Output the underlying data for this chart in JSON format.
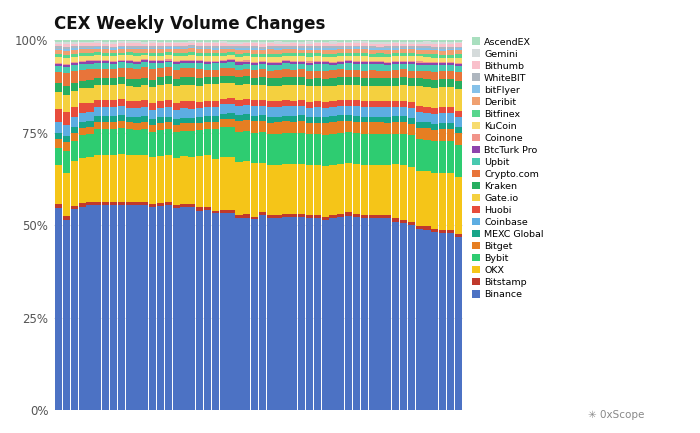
{
  "title": "CEX Weekly Volume Changes",
  "exchanges": [
    "Binance",
    "Bitstamp",
    "OKX",
    "Bybit",
    "Bitget",
    "MEXC Global",
    "Coinbase",
    "Huobi",
    "Gate.io",
    "Kraken",
    "Crypto.com",
    "Upbit",
    "BtcTurk Pro",
    "Coinone",
    "KuCoin",
    "Bitfinex",
    "Deribit",
    "bitFlyer",
    "WhiteBIT",
    "Bithumb",
    "Gemini",
    "AscendEX"
  ],
  "colors": [
    "#4C72C4",
    "#C0392B",
    "#F5C518",
    "#2ECC71",
    "#E67E22",
    "#17A589",
    "#5DADE2",
    "#E74C3C",
    "#F4D03F",
    "#27AE60",
    "#E8743A",
    "#48C9B0",
    "#8E44AD",
    "#F1948A",
    "#F7DC6F",
    "#58D68D",
    "#F0A070",
    "#85C1E9",
    "#AEB6BF",
    "#F9C0CB",
    "#D5DBDB",
    "#A9DFBF"
  ],
  "n_weeks": 52,
  "background_color": "#FFFFFF",
  "grid_color": "#E8E8E8",
  "binance_data": [
    0.47,
    0.44,
    0.5,
    0.54,
    0.55,
    0.56,
    0.56,
    0.56,
    0.56,
    0.57,
    0.57,
    0.56,
    0.56,
    0.56,
    0.56,
    0.55,
    0.55,
    0.55,
    0.54,
    0.54,
    0.53,
    0.52,
    0.52,
    0.51,
    0.51,
    0.5,
    0.51,
    0.5,
    0.5,
    0.5,
    0.5,
    0.5,
    0.5,
    0.5,
    0.49,
    0.5,
    0.5,
    0.51,
    0.5,
    0.5,
    0.5,
    0.5,
    0.5,
    0.49,
    0.48,
    0.47,
    0.46,
    0.46,
    0.45,
    0.44,
    0.44,
    0.43
  ],
  "okx_data": [
    0.09,
    0.1,
    0.11,
    0.12,
    0.12,
    0.13,
    0.13,
    0.13,
    0.13,
    0.13,
    0.13,
    0.13,
    0.13,
    0.13,
    0.13,
    0.13,
    0.13,
    0.13,
    0.14,
    0.14,
    0.14,
    0.14,
    0.14,
    0.14,
    0.14,
    0.14,
    0.13,
    0.13,
    0.13,
    0.13,
    0.13,
    0.13,
    0.13,
    0.13,
    0.13,
    0.13,
    0.13,
    0.13,
    0.13,
    0.13,
    0.13,
    0.13,
    0.13,
    0.14,
    0.14,
    0.14,
    0.14,
    0.14,
    0.14,
    0.14,
    0.14,
    0.14
  ],
  "bybit_data": [
    0.04,
    0.05,
    0.05,
    0.06,
    0.06,
    0.07,
    0.07,
    0.07,
    0.07,
    0.07,
    0.07,
    0.07,
    0.07,
    0.07,
    0.07,
    0.07,
    0.07,
    0.07,
    0.07,
    0.07,
    0.08,
    0.08,
    0.08,
    0.08,
    0.08,
    0.08,
    0.08,
    0.08,
    0.08,
    0.08,
    0.08,
    0.08,
    0.08,
    0.08,
    0.08,
    0.08,
    0.08,
    0.08,
    0.08,
    0.08,
    0.08,
    0.08,
    0.08,
    0.08,
    0.08,
    0.08,
    0.08,
    0.08,
    0.08,
    0.08,
    0.08,
    0.08
  ],
  "bitget_data": [
    0.02,
    0.02,
    0.02,
    0.02,
    0.02,
    0.02,
    0.02,
    0.02,
    0.02,
    0.02,
    0.02,
    0.02,
    0.02,
    0.02,
    0.02,
    0.02,
    0.02,
    0.02,
    0.02,
    0.02,
    0.02,
    0.02,
    0.02,
    0.03,
    0.03,
    0.03,
    0.03,
    0.03,
    0.03,
    0.03,
    0.03,
    0.03,
    0.03,
    0.03,
    0.03,
    0.03,
    0.03,
    0.03,
    0.03,
    0.03,
    0.03,
    0.03,
    0.03,
    0.03,
    0.03,
    0.03,
    0.03,
    0.03,
    0.03,
    0.03,
    0.03,
    0.03
  ],
  "mexc_data": [
    0.015,
    0.015,
    0.015,
    0.015,
    0.015,
    0.015,
    0.015,
    0.015,
    0.015,
    0.015,
    0.015,
    0.015,
    0.015,
    0.015,
    0.015,
    0.015,
    0.015,
    0.015,
    0.015,
    0.015,
    0.015,
    0.015,
    0.015,
    0.015,
    0.015,
    0.015,
    0.015,
    0.015,
    0.015,
    0.015,
    0.015,
    0.015,
    0.015,
    0.015,
    0.015,
    0.015,
    0.015,
    0.015,
    0.015,
    0.015,
    0.015,
    0.015,
    0.015,
    0.015,
    0.015,
    0.015,
    0.015,
    0.015,
    0.015,
    0.015,
    0.015,
    0.015
  ],
  "coinbase_data": [
    0.025,
    0.025,
    0.025,
    0.025,
    0.025,
    0.025,
    0.025,
    0.025,
    0.025,
    0.025,
    0.025,
    0.025,
    0.025,
    0.025,
    0.025,
    0.025,
    0.025,
    0.025,
    0.025,
    0.025,
    0.025,
    0.025,
    0.025,
    0.025,
    0.025,
    0.025,
    0.025,
    0.025,
    0.025,
    0.025,
    0.025,
    0.025,
    0.025,
    0.025,
    0.025,
    0.025,
    0.025,
    0.025,
    0.025,
    0.025,
    0.025,
    0.025,
    0.025,
    0.025,
    0.025,
    0.025,
    0.025,
    0.025,
    0.025,
    0.025,
    0.025,
    0.025
  ],
  "huobi_data": [
    0.03,
    0.03,
    0.025,
    0.025,
    0.025,
    0.02,
    0.02,
    0.02,
    0.02,
    0.02,
    0.02,
    0.02,
    0.02,
    0.02,
    0.02,
    0.02,
    0.02,
    0.02,
    0.015,
    0.015,
    0.015,
    0.015,
    0.015,
    0.015,
    0.015,
    0.015,
    0.015,
    0.015,
    0.015,
    0.015,
    0.015,
    0.015,
    0.015,
    0.015,
    0.015,
    0.015,
    0.015,
    0.015,
    0.015,
    0.015,
    0.015,
    0.015,
    0.015,
    0.015,
    0.015,
    0.015,
    0.015,
    0.015,
    0.015,
    0.015,
    0.015,
    0.015
  ],
  "gateio_data": [
    0.04,
    0.04,
    0.04,
    0.04,
    0.04,
    0.04,
    0.04,
    0.04,
    0.04,
    0.04,
    0.04,
    0.04,
    0.045,
    0.045,
    0.045,
    0.045,
    0.045,
    0.045,
    0.045,
    0.045,
    0.045,
    0.04,
    0.04,
    0.04,
    0.04,
    0.04,
    0.04,
    0.04,
    0.04,
    0.04,
    0.04,
    0.04,
    0.04,
    0.04,
    0.04,
    0.04,
    0.04,
    0.04,
    0.04,
    0.04,
    0.04,
    0.04,
    0.04,
    0.04,
    0.04,
    0.04,
    0.05,
    0.05,
    0.05,
    0.05,
    0.05,
    0.055
  ],
  "kraken_data": [
    0.02,
    0.02,
    0.02,
    0.02,
    0.02,
    0.02,
    0.02,
    0.02,
    0.02,
    0.02,
    0.02,
    0.02,
    0.02,
    0.02,
    0.02,
    0.02,
    0.02,
    0.02,
    0.02,
    0.02,
    0.02,
    0.02,
    0.02,
    0.02,
    0.02,
    0.02,
    0.02,
    0.02,
    0.02,
    0.02,
    0.02,
    0.02,
    0.02,
    0.02,
    0.02,
    0.02,
    0.02,
    0.02,
    0.02,
    0.02,
    0.02,
    0.02,
    0.02,
    0.02,
    0.02,
    0.02,
    0.02,
    0.02,
    0.02,
    0.02,
    0.02,
    0.02
  ],
  "cryptocom_data": [
    0.025,
    0.03,
    0.03,
    0.03,
    0.03,
    0.025,
    0.025,
    0.025,
    0.025,
    0.03,
    0.03,
    0.03,
    0.03,
    0.025,
    0.025,
    0.025,
    0.025,
    0.025,
    0.025,
    0.02,
    0.02,
    0.02,
    0.02,
    0.02,
    0.02,
    0.02,
    0.02,
    0.02,
    0.02,
    0.02,
    0.02,
    0.02,
    0.02,
    0.02,
    0.02,
    0.02,
    0.02,
    0.02,
    0.02,
    0.02,
    0.02,
    0.02,
    0.02,
    0.02,
    0.02,
    0.02,
    0.02,
    0.02,
    0.02,
    0.02,
    0.02,
    0.02
  ]
}
